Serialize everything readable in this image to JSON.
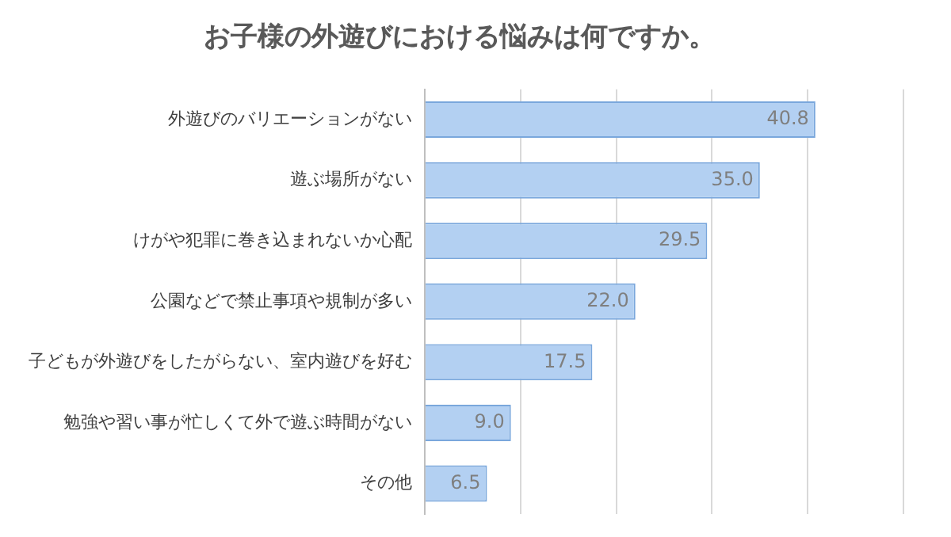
{
  "chart_data": {
    "type": "bar",
    "orientation": "horizontal",
    "title": "お子様の外遊びにおける悩みは何ですか。",
    "categories": [
      "外遊びのバリエーションがない",
      "遊ぶ場所がない",
      "けがや犯罪に巻き込まれないか心配",
      "公園などで禁止事項や規制が多い",
      "子どもが外遊びをしたがらない、室内遊びを好む",
      "勉強や習い事が忙しくて外で遊ぶ時間がない",
      "その他"
    ],
    "values": [
      40.8,
      35.0,
      29.5,
      22.0,
      17.5,
      9.0,
      6.5
    ],
    "value_labels": [
      "40.8",
      "35.0",
      "29.5",
      "22.0",
      "17.5",
      "9.0",
      "6.5"
    ],
    "color": "#b3d0f2",
    "xlim": [
      0,
      50
    ],
    "xticks": [
      {
        "value": 0,
        "label": null
      },
      {
        "value": 10,
        "label": null
      },
      {
        "value": 20,
        "label": null
      },
      {
        "value": 30,
        "label": null
      },
      {
        "value": 40,
        "label": null
      },
      {
        "value": 50,
        "label": null
      }
    ],
    "tick_labels": "y",
    "grid": "x",
    "legend": false
  }
}
